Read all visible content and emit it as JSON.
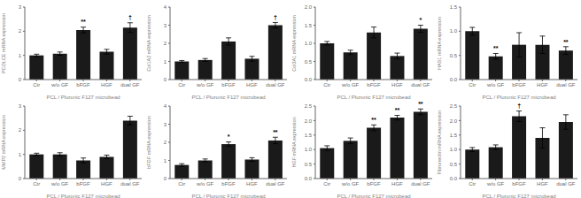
{
  "chart_data": [
    {
      "type": "bar",
      "ylabel": "PCOLCE mRNA expression",
      "xlabel": "PCL / Pluronic F127 microbead",
      "categories": [
        "Ctr",
        "w/o GF",
        "bFGF",
        "HGF",
        "dual GF"
      ],
      "values": [
        1.0,
        1.07,
        2.05,
        1.15,
        2.15
      ],
      "errors": [
        0.05,
        0.07,
        0.12,
        0.1,
        0.2
      ],
      "annotations": [
        {
          "x": "bFGF",
          "text": "**"
        },
        {
          "x": "dual GF",
          "text": "†"
        }
      ],
      "color": "#1a1a1a",
      "ylim": [
        0,
        3
      ],
      "yticks": [
        0,
        1,
        2,
        3
      ]
    },
    {
      "type": "bar",
      "ylabel": "Col1A2 mRNA expression",
      "xlabel": "PCL / Pluronic F127 microbead",
      "categories": [
        "Ctr",
        "w/o GF",
        "bFGF",
        "HGF",
        "dual GF"
      ],
      "values": [
        1.0,
        1.08,
        2.1,
        1.15,
        3.0
      ],
      "errors": [
        0.05,
        0.08,
        0.2,
        0.13,
        0.15
      ],
      "annotations": [
        {
          "x": "dual GF",
          "text": "†"
        }
      ],
      "color": "#1a1a1a",
      "ylim": [
        0,
        4
      ],
      "yticks": [
        0,
        1,
        2,
        3,
        4
      ]
    },
    {
      "type": "bar",
      "ylabel": "Col3A1 mRNA expression",
      "xlabel": "PCL / Pluronic F127 microbead",
      "categories": [
        "Ctr",
        "w/o GF",
        "bFGF",
        "HGF",
        "dual GF"
      ],
      "values": [
        1.0,
        0.75,
        1.3,
        0.65,
        1.4
      ],
      "errors": [
        0.05,
        0.06,
        0.15,
        0.08,
        0.1
      ],
      "annotations": [
        {
          "x": "dual GF",
          "text": "*"
        }
      ],
      "color": "#1a1a1a",
      "ylim": [
        0,
        2
      ],
      "yticks": [
        {
          "value": 0,
          "label": "0.0"
        },
        0.5,
        {
          "value": 1.0,
          "label": "1.0"
        },
        1.5,
        {
          "value": 2.0,
          "label": "2.0"
        }
      ]
    },
    {
      "type": "bar",
      "ylabel": "HAS1 mRNA expression",
      "xlabel": "PCL / Pluronic F127 microbead",
      "categories": [
        "Ctr",
        "w/o GF",
        "bFGF",
        "HGF",
        "dual GF"
      ],
      "values": [
        1.0,
        0.48,
        0.72,
        0.72,
        0.6
      ],
      "errors": [
        0.08,
        0.06,
        0.25,
        0.18,
        0.08
      ],
      "annotations": [
        {
          "x": "w/o GF",
          "text": "**"
        },
        {
          "x": "dual GF",
          "text": "**"
        }
      ],
      "color": "#1a1a1a",
      "ylim": [
        0,
        1.5
      ],
      "yticks": [
        {
          "value": 0,
          "label": "0.0"
        },
        0.5,
        {
          "value": 1.0,
          "label": "1.0"
        },
        1.5
      ]
    },
    {
      "type": "bar",
      "ylabel": "MMP2 mRNA expression",
      "xlabel": "PCL / Pluronic F127 microbead",
      "categories": [
        "Ctr",
        "w/o GF",
        "bFGF",
        "HGF",
        "dual GF"
      ],
      "values": [
        1.0,
        1.0,
        0.75,
        0.9,
        2.4
      ],
      "errors": [
        0.05,
        0.07,
        0.1,
        0.07,
        0.18
      ],
      "color": "#1a1a1a",
      "ylim": [
        0,
        3
      ],
      "yticks": [
        0,
        1,
        2,
        3
      ]
    },
    {
      "type": "bar",
      "ylabel": "bFGF mRNA expression",
      "xlabel": "PCL / Pluronic F127 microbead",
      "categories": [
        "Ctr",
        "w/o GF",
        "bFGF",
        "HGF",
        "dual GF"
      ],
      "values": [
        0.75,
        1.0,
        1.9,
        1.05,
        2.1
      ],
      "errors": [
        0.07,
        0.08,
        0.12,
        0.1,
        0.18
      ],
      "annotations": [
        {
          "x": "bFGF",
          "text": "*"
        },
        {
          "x": "dual GF",
          "text": "**"
        }
      ],
      "color": "#1a1a1a",
      "ylim": [
        0,
        4
      ],
      "yticks": [
        0,
        1,
        2,
        3,
        4
      ]
    },
    {
      "type": "bar",
      "ylabel": "HGF mRNA expression",
      "xlabel": "PCL / Pluronic F127 microbead",
      "categories": [
        "Ctr",
        "w/o GF",
        "bFGF",
        "HGF",
        "dual GF"
      ],
      "values": [
        1.05,
        1.3,
        1.75,
        2.1,
        2.3
      ],
      "errors": [
        0.08,
        0.1,
        0.1,
        0.08,
        0.1
      ],
      "annotations": [
        {
          "x": "bFGF",
          "text": "**"
        },
        {
          "x": "HGF",
          "text": "**"
        },
        {
          "x": "dual GF",
          "text": "**"
        }
      ],
      "color": "#1a1a1a",
      "ylim": [
        0,
        2.5
      ],
      "yticks": [
        {
          "value": 0,
          "label": "0.0"
        },
        0.5,
        {
          "value": 1.0,
          "label": "1.0"
        },
        1.5,
        {
          "value": 2.0,
          "label": "2.0"
        },
        2.5
      ]
    },
    {
      "type": "bar",
      "ylabel": "Fibronectin mRNA expression",
      "xlabel": "PCL / Pluronic F127 microbead",
      "categories": [
        "Ctr",
        "w/o GF",
        "bFGF",
        "HGF",
        "dual GF"
      ],
      "values": [
        1.0,
        1.08,
        2.15,
        1.4,
        1.95
      ],
      "errors": [
        0.07,
        0.08,
        0.18,
        0.35,
        0.25
      ],
      "annotations": [
        {
          "x": "bFGF",
          "text": "†"
        }
      ],
      "color": "#1a1a1a",
      "ylim": [
        0,
        2.5
      ],
      "yticks": [
        {
          "value": 0,
          "label": "0.0"
        },
        0.5,
        {
          "value": 1.0,
          "label": "1.0"
        },
        1.5,
        {
          "value": 2.0,
          "label": "2.0"
        },
        2.5
      ]
    }
  ]
}
